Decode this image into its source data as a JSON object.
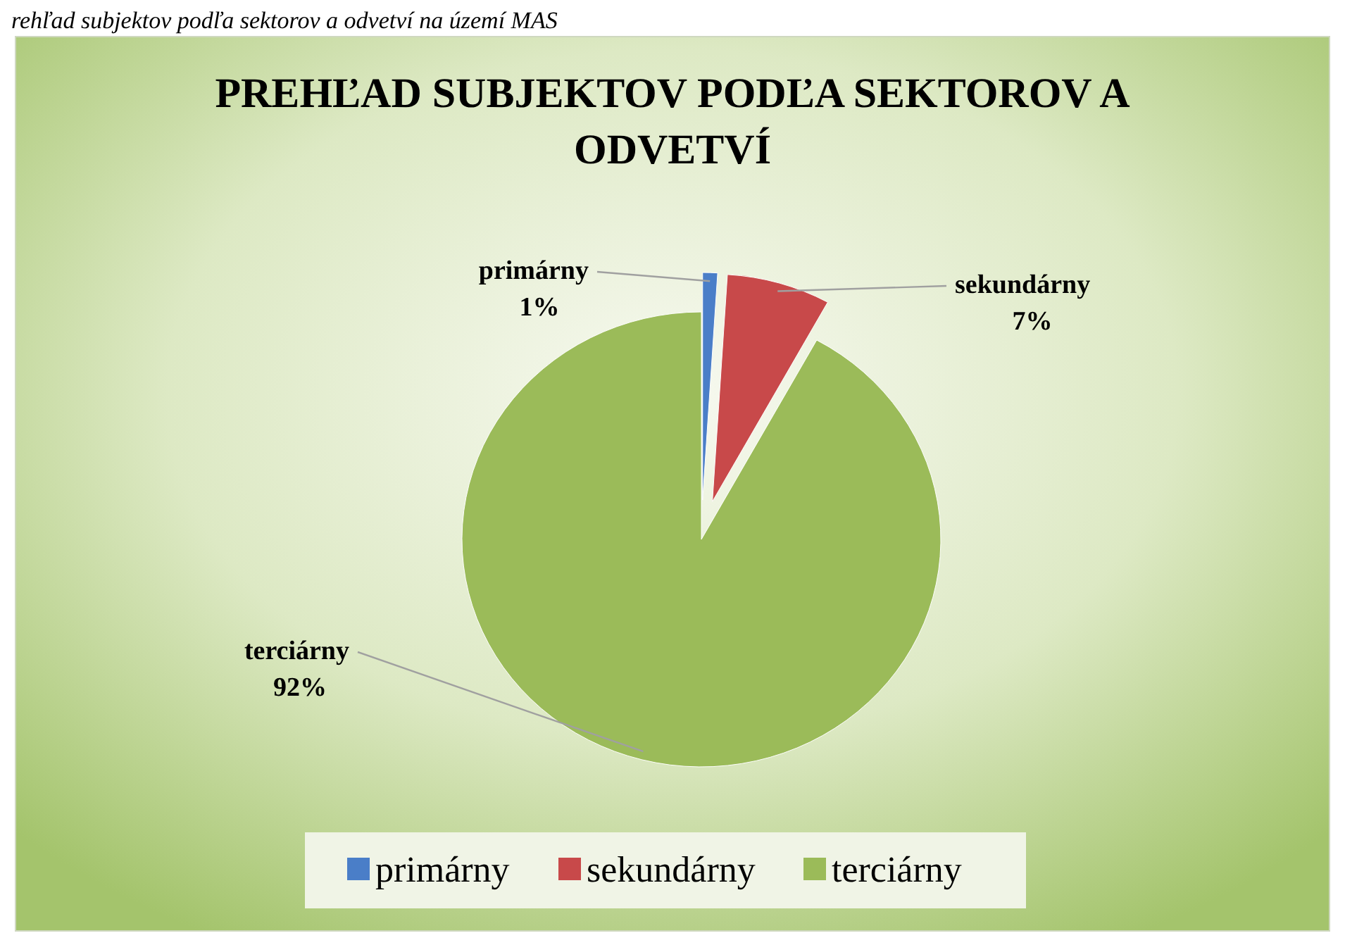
{
  "chart_data": {
    "type": "pie",
    "title": "PREHĽAD SUBJEKTOV PODĽA SEKTOROV A ODVETVÍ",
    "categories": [
      "primárny",
      "sekundárny",
      "terciárny"
    ],
    "values": [
      1,
      7,
      92
    ],
    "value_labels": [
      "1%",
      "7%",
      "92%"
    ],
    "colors": [
      "#4a7ec8",
      "#c8494a",
      "#9bbb59"
    ],
    "legend": "bottom",
    "annotations": [
      "rehľad subjektov podľa sektorov a odvetví na území MAS"
    ]
  }
}
